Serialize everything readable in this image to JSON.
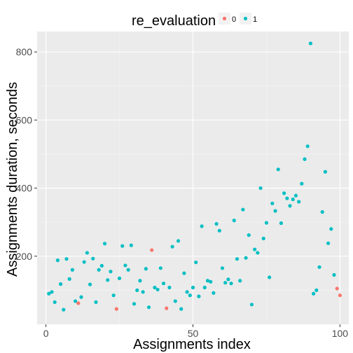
{
  "chart_data": {
    "type": "scatter",
    "xlabel": "Assignments index",
    "ylabel": "Assignments duration, seconds",
    "xlim": [
      -3,
      103
    ],
    "ylim": [
      0,
      860
    ],
    "x_ticks": [
      0,
      50,
      100
    ],
    "y_ticks": [
      200,
      400,
      600,
      800
    ],
    "grid": true,
    "legend": {
      "title": "re_evaluation",
      "placement": "top",
      "entries": [
        {
          "label": "0",
          "color": "#F8766D"
        },
        {
          "label": "1",
          "color": "#00BFC4"
        }
      ]
    },
    "series": [
      {
        "name": "0",
        "color": "#F8766D",
        "points": [
          [
            11,
            62
          ],
          [
            24,
            45
          ],
          [
            36,
            218
          ],
          [
            41,
            47
          ],
          [
            99,
            105
          ],
          [
            100,
            85
          ]
        ]
      },
      {
        "name": "1",
        "color": "#00BFC4",
        "points": [
          [
            1,
            90
          ],
          [
            2,
            95
          ],
          [
            3,
            65
          ],
          [
            4,
            188
          ],
          [
            5,
            118
          ],
          [
            6,
            43
          ],
          [
            7,
            192
          ],
          [
            8,
            133
          ],
          [
            9,
            160
          ],
          [
            10,
            68
          ],
          [
            12,
            80
          ],
          [
            13,
            183
          ],
          [
            14,
            210
          ],
          [
            15,
            117
          ],
          [
            16,
            193
          ],
          [
            17,
            65
          ],
          [
            18,
            160
          ],
          [
            19,
            172
          ],
          [
            20,
            237
          ],
          [
            21,
            130
          ],
          [
            22,
            155
          ],
          [
            23,
            85
          ],
          [
            25,
            135
          ],
          [
            26,
            230
          ],
          [
            27,
            173
          ],
          [
            28,
            160
          ],
          [
            29,
            232
          ],
          [
            30,
            60
          ],
          [
            31,
            100
          ],
          [
            32,
            128
          ],
          [
            33,
            95
          ],
          [
            34,
            163
          ],
          [
            35,
            50
          ],
          [
            37,
            108
          ],
          [
            38,
            102
          ],
          [
            39,
            165
          ],
          [
            40,
            120
          ],
          [
            42,
            108
          ],
          [
            43,
            228
          ],
          [
            44,
            68
          ],
          [
            45,
            245
          ],
          [
            46,
            45
          ],
          [
            47,
            150
          ],
          [
            48,
            95
          ],
          [
            49,
            85
          ],
          [
            50,
            108
          ],
          [
            51,
            182
          ],
          [
            52,
            82
          ],
          [
            53,
            288
          ],
          [
            54,
            108
          ],
          [
            55,
            128
          ],
          [
            56,
            125
          ],
          [
            57,
            92
          ],
          [
            58,
            295
          ],
          [
            59,
            275
          ],
          [
            60,
            165
          ],
          [
            61,
            122
          ],
          [
            62,
            132
          ],
          [
            63,
            120
          ],
          [
            64,
            305
          ],
          [
            65,
            192
          ],
          [
            66,
            128
          ],
          [
            67,
            337
          ],
          [
            68,
            195
          ],
          [
            69,
            262
          ],
          [
            70,
            58
          ],
          [
            71,
            220
          ],
          [
            72,
            210
          ],
          [
            73,
            400
          ],
          [
            74,
            252
          ],
          [
            75,
            298
          ],
          [
            76,
            138
          ],
          [
            77,
            355
          ],
          [
            78,
            333
          ],
          [
            79,
            455
          ],
          [
            80,
            297
          ],
          [
            81,
            385
          ],
          [
            82,
            370
          ],
          [
            83,
            348
          ],
          [
            84,
            367
          ],
          [
            85,
            378
          ],
          [
            86,
            360
          ],
          [
            87,
            413
          ],
          [
            88,
            485
          ],
          [
            89,
            523
          ],
          [
            90,
            825
          ],
          [
            91,
            90
          ],
          [
            92,
            100
          ],
          [
            93,
            168
          ],
          [
            94,
            330
          ],
          [
            95,
            448
          ],
          [
            96,
            238
          ],
          [
            97,
            280
          ],
          [
            98,
            145
          ]
        ]
      }
    ]
  }
}
